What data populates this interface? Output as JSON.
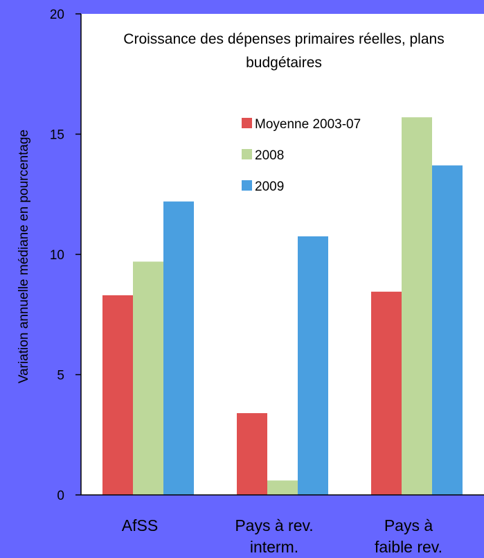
{
  "chart_data": {
    "type": "bar",
    "title_lines": [
      "Croissance des dépenses primaires réelles,  plans",
      "budgétaires"
    ],
    "ylabel": "Variation annuelle médiane en pourcentage",
    "xlabel": "",
    "ylim": [
      0,
      20
    ],
    "yticks": [
      "0",
      "5",
      "10",
      "15",
      "20"
    ],
    "categories": [
      [
        "AfSS"
      ],
      [
        "Pays à rev.",
        "interm."
      ],
      [
        "Pays à",
        "faible rev."
      ]
    ],
    "series": [
      {
        "name": "Moyenne 2003-07",
        "color": "#E05050",
        "values": [
          8.3,
          3.4,
          8.45
        ]
      },
      {
        "name": "2008",
        "color": "#BDD89A",
        "values": [
          9.7,
          0.6,
          15.7
        ]
      },
      {
        "name": "2009",
        "color": "#4A9FE0",
        "values": [
          12.2,
          10.75,
          13.7
        ]
      }
    ],
    "legend_position": "top-right",
    "grid": false,
    "plot_background": "#FFFFFF",
    "page_background": "#6666FF"
  }
}
